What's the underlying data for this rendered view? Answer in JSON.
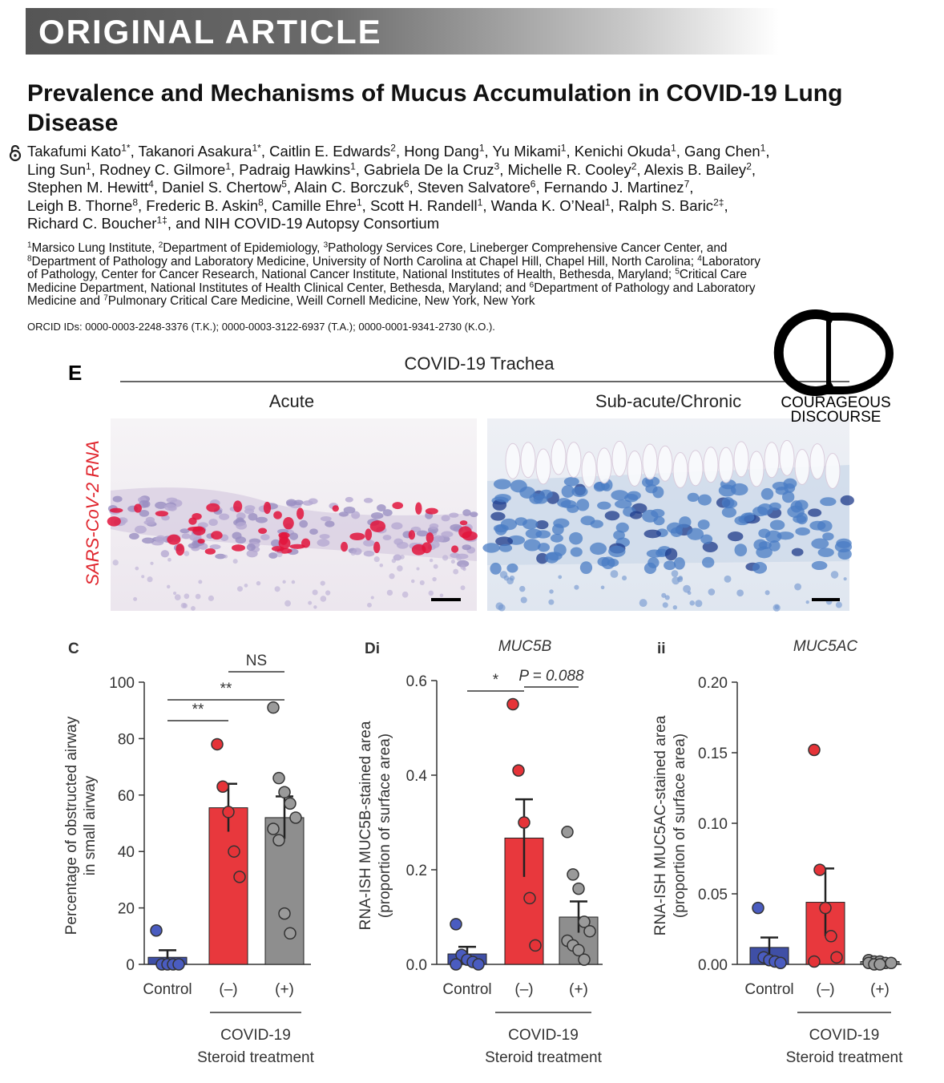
{
  "banner": "ORIGINAL ARTICLE",
  "title": "Prevalence and Mechanisms of Mucus Accumulation in COVID-19 Lung Disease",
  "authors": [
    [
      "Takafumi Kato",
      {
        "sup": "1*"
      },
      ", Takanori Asakura",
      {
        "sup": "1*"
      },
      ", Caitlin E. Edwards",
      {
        "sup": "2"
      },
      ", Hong Dang",
      {
        "sup": "1"
      },
      ", Yu Mikami",
      {
        "sup": "1"
      },
      ", Kenichi Okuda",
      {
        "sup": "1"
      },
      ", Gang Chen",
      {
        "sup": "1"
      },
      ","
    ],
    [
      "Ling Sun",
      {
        "sup": "1"
      },
      ", Rodney C. Gilmore",
      {
        "sup": "1"
      },
      ", Padraig Hawkins",
      {
        "sup": "1"
      },
      ", Gabriela De la Cruz",
      {
        "sup": "3"
      },
      ", Michelle R. Cooley",
      {
        "sup": "2"
      },
      ", Alexis B. Bailey",
      {
        "sup": "2"
      },
      ","
    ],
    [
      "Stephen M. Hewitt",
      {
        "sup": "4"
      },
      ", Daniel S. Chertow",
      {
        "sup": "5"
      },
      ", Alain C. Borczuk",
      {
        "sup": "6"
      },
      ", Steven Salvatore",
      {
        "sup": "6"
      },
      ", Fernando J. Martinez",
      {
        "sup": "7"
      },
      ","
    ],
    [
      "Leigh B. Thorne",
      {
        "sup": "8"
      },
      ", Frederic B. Askin",
      {
        "sup": "8"
      },
      ", Camille Ehre",
      {
        "sup": "1"
      },
      ", Scott H. Randell",
      {
        "sup": "1"
      },
      ", Wanda K. O’Neal",
      {
        "sup": "1"
      },
      ", Ralph S. Baric",
      {
        "sup": "2‡"
      },
      ","
    ],
    [
      "Richard C. Boucher",
      {
        "sup": "1‡"
      },
      ", and NIH COVID-19 Autopsy Consortium"
    ]
  ],
  "affiliations": [
    [
      {
        "sup": "1"
      },
      "Marsico Lung Institute, ",
      {
        "sup": "2"
      },
      "Department of Epidemiology, ",
      {
        "sup": "3"
      },
      "Pathology Services Core, Lineberger Comprehensive Cancer Center, and"
    ],
    [
      {
        "sup": "8"
      },
      "Department of Pathology and Laboratory Medicine, University of North Carolina at Chapel Hill, Chapel Hill, North Carolina; ",
      {
        "sup": "4"
      },
      "Laboratory"
    ],
    [
      "of Pathology, Center for Cancer Research, National Cancer Institute, National Institutes of Health, Bethesda, Maryland; ",
      {
        "sup": "5"
      },
      "Critical Care"
    ],
    [
      "Medicine Department, National Institutes of Health Clinical Center, Bethesda, Maryland; and ",
      {
        "sup": "6"
      },
      "Department of Pathology and Laboratory"
    ],
    [
      "Medicine and ",
      {
        "sup": "7"
      },
      "Pulmonary Critical Care Medicine, Weill Cornell Medicine, New York, New York"
    ]
  ],
  "orcid": "ORCID IDs: 0000-0003-2248-3376 (T.K.); 0000-0003-3122-6937 (T.A.); 0000-0001-9341-2730 (K.O.).",
  "figure_e": {
    "label": "E",
    "title": "COVID-19 Trachea",
    "columns": [
      "Acute",
      "Sub-acute/Chronic"
    ],
    "row_label": "SARS-CoV-2 RNA"
  },
  "logo": {
    "line1": "COURAGEOUS",
    "line2": "DISCOURSE"
  },
  "chart_data": [
    {
      "type": "bar",
      "panel": "C",
      "ylabel": [
        "Percentage  of obstructed airway",
        "in small airway"
      ],
      "categories": [
        "Control",
        "(–)",
        "(+)"
      ],
      "group_label": [
        "COVID-19",
        "Steroid treatment"
      ],
      "colors": [
        "#3f4fa6",
        "#e8383d",
        "#8e8e8e"
      ],
      "values": [
        2.5,
        55.5,
        52
      ],
      "errors": [
        2.5,
        8.5,
        7.5
      ],
      "points": [
        [
          12,
          0,
          0,
          0,
          0
        ],
        [
          78,
          63,
          54,
          40,
          31
        ],
        [
          91,
          66,
          61,
          57,
          52,
          48,
          44,
          18,
          11
        ]
      ],
      "annotations": [
        "NS",
        "**",
        "**"
      ],
      "ylim": [
        0,
        100
      ],
      "yticks": [
        0,
        20,
        40,
        60,
        80,
        100
      ]
    },
    {
      "type": "bar",
      "panel": "Di",
      "title": "MUC5B",
      "ylabel": [
        "RNA-ISH  MUC5B-stained area",
        "(proportion of surface area)"
      ],
      "categories": [
        "Control",
        "(–)",
        "(+)"
      ],
      "group_label": [
        "COVID-19",
        "Steroid treatment"
      ],
      "colors": [
        "#3f4fa6",
        "#e8383d",
        "#8e8e8e"
      ],
      "values": [
        0.022,
        0.267,
        0.1
      ],
      "errors": [
        0.015,
        0.082,
        0.033
      ],
      "points": [
        [
          0.085,
          0.02,
          0.01,
          0.005,
          0,
          0
        ],
        [
          0.55,
          0.41,
          0.3,
          0.14,
          0.04
        ],
        [
          0.28,
          0.19,
          0.16,
          0.09,
          0.07,
          0.05,
          0.04,
          0.03,
          0.01
        ]
      ],
      "annotations": [
        "P = 0.088",
        "*"
      ],
      "ylim": [
        0,
        0.6
      ],
      "yticks": [
        {
          "value": 0,
          "label": "0.0"
        },
        0.2,
        0.4,
        0.6
      ]
    },
    {
      "type": "bar",
      "panel": "ii",
      "title": "MUC5AC",
      "ylabel": [
        "RNA-ISH  MUC5AC-stained area",
        "(proportion of surface area)"
      ],
      "categories": [
        "Control",
        "(–)",
        "(+)"
      ],
      "group_label": [
        "COVID-19",
        "Steroid treatment"
      ],
      "colors": [
        "#3f4fa6",
        "#e8383d",
        "#8e8e8e"
      ],
      "values": [
        0.012,
        0.044,
        0.002
      ],
      "errors": [
        0.007,
        0.024,
        0.001
      ],
      "points": [
        [
          0.04,
          0.005,
          0.003,
          0.002,
          0.001
        ],
        [
          0.152,
          0.067,
          0.04,
          0.02,
          0.005,
          0.002
        ],
        [
          0.003,
          0.002,
          0.002,
          0.001,
          0.001,
          0.001,
          0,
          0
        ]
      ],
      "annotations": [],
      "ylim": [
        0,
        0.2
      ],
      "yticks": [
        {
          "value": 0,
          "label": "0.00"
        },
        0.05,
        {
          "value": 0.1,
          "label": "0.10"
        },
        0.15,
        {
          "value": 0.2,
          "label": "0.20"
        }
      ]
    }
  ]
}
